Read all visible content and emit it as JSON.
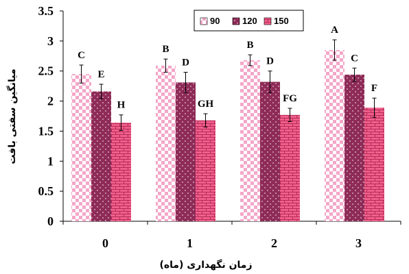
{
  "chart_data": {
    "type": "bar",
    "categories": [
      "0",
      "1",
      "2",
      "3"
    ],
    "xlabel": "زمان نگهداری (ماه)",
    "ylabel": "میانگین سفتی بافت",
    "ylim": [
      0,
      3.5
    ],
    "yticks": [
      "0",
      "0.5",
      "1",
      "1.5",
      "2",
      "2.5",
      "3",
      "3.5"
    ],
    "legend_position": "top-right",
    "grid": false,
    "series": [
      {
        "name": "90",
        "values": [
          2.45,
          2.59,
          2.68,
          2.85
        ],
        "errors": [
          0.15,
          0.11,
          0.09,
          0.17
        ],
        "letters": [
          "C",
          "B",
          "B",
          "A"
        ],
        "pattern": "checker",
        "color": "#f4a7c9"
      },
      {
        "name": "120",
        "values": [
          2.16,
          2.31,
          2.32,
          2.44
        ],
        "errors": [
          0.12,
          0.17,
          0.18,
          0.11
        ],
        "letters": [
          "E",
          "D",
          "D",
          "C"
        ],
        "pattern": "dots",
        "color": "#8e2b57"
      },
      {
        "name": "150",
        "values": [
          1.64,
          1.68,
          1.77,
          1.89
        ],
        "errors": [
          0.13,
          0.11,
          0.11,
          0.16
        ],
        "letters": [
          "H",
          "GH",
          "FG",
          "F"
        ],
        "pattern": "brick",
        "color": "#f0608a"
      }
    ]
  }
}
